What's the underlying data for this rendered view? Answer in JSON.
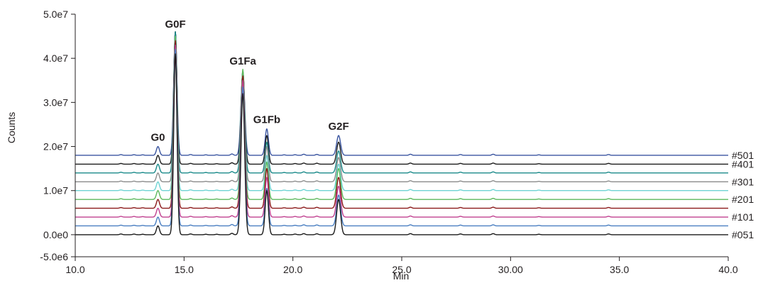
{
  "chart_data": {
    "type": "line",
    "title": "",
    "xlabel": "Min",
    "ylabel": "Counts",
    "xlim": [
      10,
      40
    ],
    "ylim": [
      -5000000,
      50000000
    ],
    "x_ticks": [
      {
        "value": 10,
        "label": "10.0"
      },
      {
        "value": 15,
        "label": "15.0"
      },
      {
        "value": 20,
        "label": "20.0"
      },
      {
        "value": 25,
        "label": "25.0"
      },
      {
        "value": 30,
        "label": "30.00"
      },
      {
        "value": 35,
        "label": "35.0"
      },
      {
        "value": 40,
        "label": "40.0"
      }
    ],
    "y_ticks": [
      {
        "value": 50000000,
        "label": "5.0e7"
      },
      {
        "value": 40000000,
        "label": "4.0e7"
      },
      {
        "value": 30000000,
        "label": "3.0e7"
      },
      {
        "value": 20000000,
        "label": "2.0e7"
      },
      {
        "value": 10000000,
        "label": "1.0e7"
      },
      {
        "value": 0,
        "label": "0.0e0"
      },
      {
        "value": -5000000,
        "label": "-5.0e6"
      }
    ],
    "grid": false,
    "peaks": [
      {
        "label": "G0",
        "x": 13.8
      },
      {
        "label": "G0F",
        "x": 14.6
      },
      {
        "label": "G1Fa",
        "x": 17.7
      },
      {
        "label": "G1Fb",
        "x": 18.8
      },
      {
        "label": "G2F",
        "x": 22.1
      }
    ],
    "series": [
      {
        "label": "#051",
        "labeled": true,
        "color": "#1a1a1a",
        "baseline": 0,
        "heights": [
          2000000,
          41000000,
          32000000,
          10000000,
          8000000
        ]
      },
      {
        "label": "",
        "labeled": false,
        "color": "#4a7fc1",
        "baseline": 2000000,
        "heights": [
          2000000,
          40000000,
          31500000,
          8500000,
          7000000
        ]
      },
      {
        "label": "#101",
        "labeled": true,
        "color": "#c0408f",
        "baseline": 4000000,
        "heights": [
          2000000,
          39000000,
          31000000,
          9000000,
          7000000
        ]
      },
      {
        "label": "",
        "labeled": false,
        "color": "#8b1a1a",
        "baseline": 6000000,
        "heights": [
          2000000,
          38000000,
          30000000,
          9000000,
          7000000
        ]
      },
      {
        "label": "#201",
        "labeled": true,
        "color": "#5cb85c",
        "baseline": 8000000,
        "heights": [
          2000000,
          37000000,
          29500000,
          8500000,
          7000000
        ]
      },
      {
        "label": "",
        "labeled": false,
        "color": "#6fd3d3",
        "baseline": 10000000,
        "heights": [
          2000000,
          35000000,
          27000000,
          8000000,
          6000000
        ]
      },
      {
        "label": "#301",
        "labeled": true,
        "color": "#8c8c8c",
        "baseline": 12000000,
        "heights": [
          2000000,
          33000000,
          25000000,
          8000000,
          5500000
        ]
      },
      {
        "label": "",
        "labeled": false,
        "color": "#1a8a8a",
        "baseline": 14000000,
        "heights": [
          2000000,
          32000000,
          23000000,
          7000000,
          5000000
        ]
      },
      {
        "label": "#401",
        "labeled": true,
        "color": "#1a1a1a",
        "baseline": 16000000,
        "heights": [
          2000000,
          30000000,
          21000000,
          6500000,
          5000000
        ]
      },
      {
        "label": "#501",
        "labeled": true,
        "color": "#3a55a0",
        "baseline": 18000000,
        "heights": [
          2000000,
          28000000,
          19000000,
          6000000,
          4500000
        ]
      }
    ]
  }
}
